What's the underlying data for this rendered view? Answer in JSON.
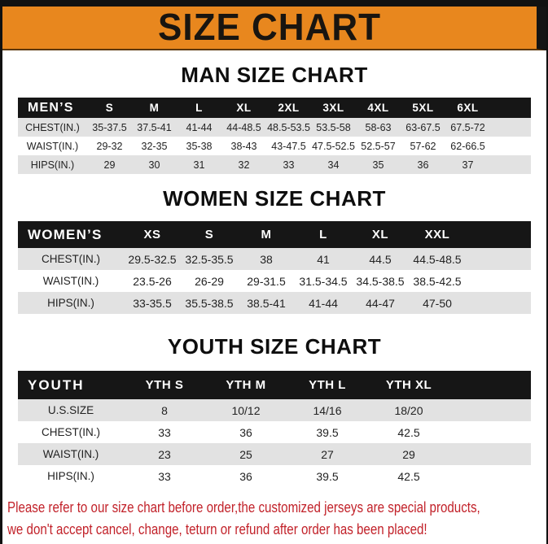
{
  "title_bar": {
    "title": "SIZE CHART"
  },
  "sections": {
    "men": {
      "heading": "MAN SIZE CHART",
      "table": {
        "header": [
          "MEN’S",
          "S",
          "M",
          "L",
          "XL",
          "2XL",
          "3XL",
          "4XL",
          "5XL",
          "6XL"
        ],
        "rows": [
          [
            "CHEST(IN.)",
            "35-37.5",
            "37.5-41",
            "41-44",
            "44-48.5",
            "48.5-53.5",
            "53.5-58",
            "58-63",
            "63-67.5",
            "67.5-72"
          ],
          [
            "WAIST(IN.)",
            "29-32",
            "32-35",
            "35-38",
            "38-43",
            "43-47.5",
            "47.5-52.5",
            "52.5-57",
            "57-62",
            "62-66.5"
          ],
          [
            "HIPS(IN.)",
            "29",
            "30",
            "31",
            "32",
            "33",
            "34",
            "35",
            "36",
            "37"
          ]
        ]
      }
    },
    "women": {
      "heading": "WOMEN SIZE CHART",
      "table": {
        "header": [
          "WOMEN’S",
          "XS",
          "S",
          "M",
          "L",
          "XL",
          "XXL"
        ],
        "rows": [
          [
            "CHEST(IN.)",
            "29.5-32.5",
            "32.5-35.5",
            "38",
            "41",
            "44.5",
            "44.5-48.5"
          ],
          [
            "WAIST(IN.)",
            "23.5-26",
            "26-29",
            "29-31.5",
            "31.5-34.5",
            "34.5-38.5",
            "38.5-42.5"
          ],
          [
            "HIPS(IN.)",
            "33-35.5",
            "35.5-38.5",
            "38.5-41",
            "41-44",
            "44-47",
            "47-50"
          ]
        ]
      }
    },
    "youth": {
      "heading": "YOUTH SIZE CHART",
      "table": {
        "header": [
          "YOUTH",
          "YTH S",
          "YTH M",
          "YTH L",
          "YTH XL"
        ],
        "rows": [
          [
            "U.S.SIZE",
            "8",
            "10/12",
            "14/16",
            "18/20"
          ],
          [
            "CHEST(IN.)",
            "33",
            "36",
            "39.5",
            "42.5"
          ],
          [
            "WAIST(IN.)",
            "23",
            "25",
            "27",
            "29"
          ],
          [
            "HIPS(IN.)",
            "33",
            "36",
            "39.5",
            "42.5"
          ]
        ]
      }
    }
  },
  "disclaimer": {
    "line1": "Please refer to our size chart before order,the customized jerseys are special products,",
    "line2": "we don't accept cancel, change, teturn or refund after order has been placed!"
  },
  "colors": {
    "accent_orange": "#E8871E",
    "frame_black": "#111111",
    "table_header_black": "#161616",
    "row_stripe_gray": "#E2E2E2",
    "disclaimer_red": "#C2222A"
  }
}
